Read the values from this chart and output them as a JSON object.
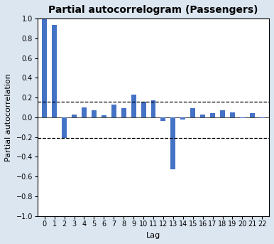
{
  "title": "Partial autocorrelogram (Passengers)",
  "xlabel": "Lag",
  "ylabel": "Partial autocorrelation",
  "lags": [
    0,
    1,
    2,
    3,
    4,
    5,
    6,
    7,
    8,
    9,
    10,
    11,
    12,
    13,
    14,
    15,
    16,
    17,
    18,
    19,
    20,
    21,
    22
  ],
  "values": [
    1.0,
    0.94,
    -0.21,
    0.03,
    0.1,
    0.07,
    0.02,
    0.13,
    0.09,
    0.23,
    0.16,
    0.17,
    -0.04,
    -0.53,
    -0.02,
    0.09,
    0.03,
    0.04,
    0.07,
    0.05,
    -0.01,
    0.04,
    -0.01
  ],
  "bar_color": "#4472C4",
  "confidence_upper": 0.16,
  "confidence_lower": -0.21,
  "ylim": [
    -1.0,
    1.0
  ],
  "yticks": [
    -1,
    -0.8,
    -0.6,
    -0.4,
    -0.2,
    0,
    0.2,
    0.4,
    0.6,
    0.8,
    1
  ],
  "plot_bg_color": "#ffffff",
  "fig_bg_color": "#dce6f1",
  "dashed_line_color": "black",
  "title_fontsize": 10,
  "axis_label_fontsize": 8,
  "tick_fontsize": 7,
  "bar_width": 0.5
}
